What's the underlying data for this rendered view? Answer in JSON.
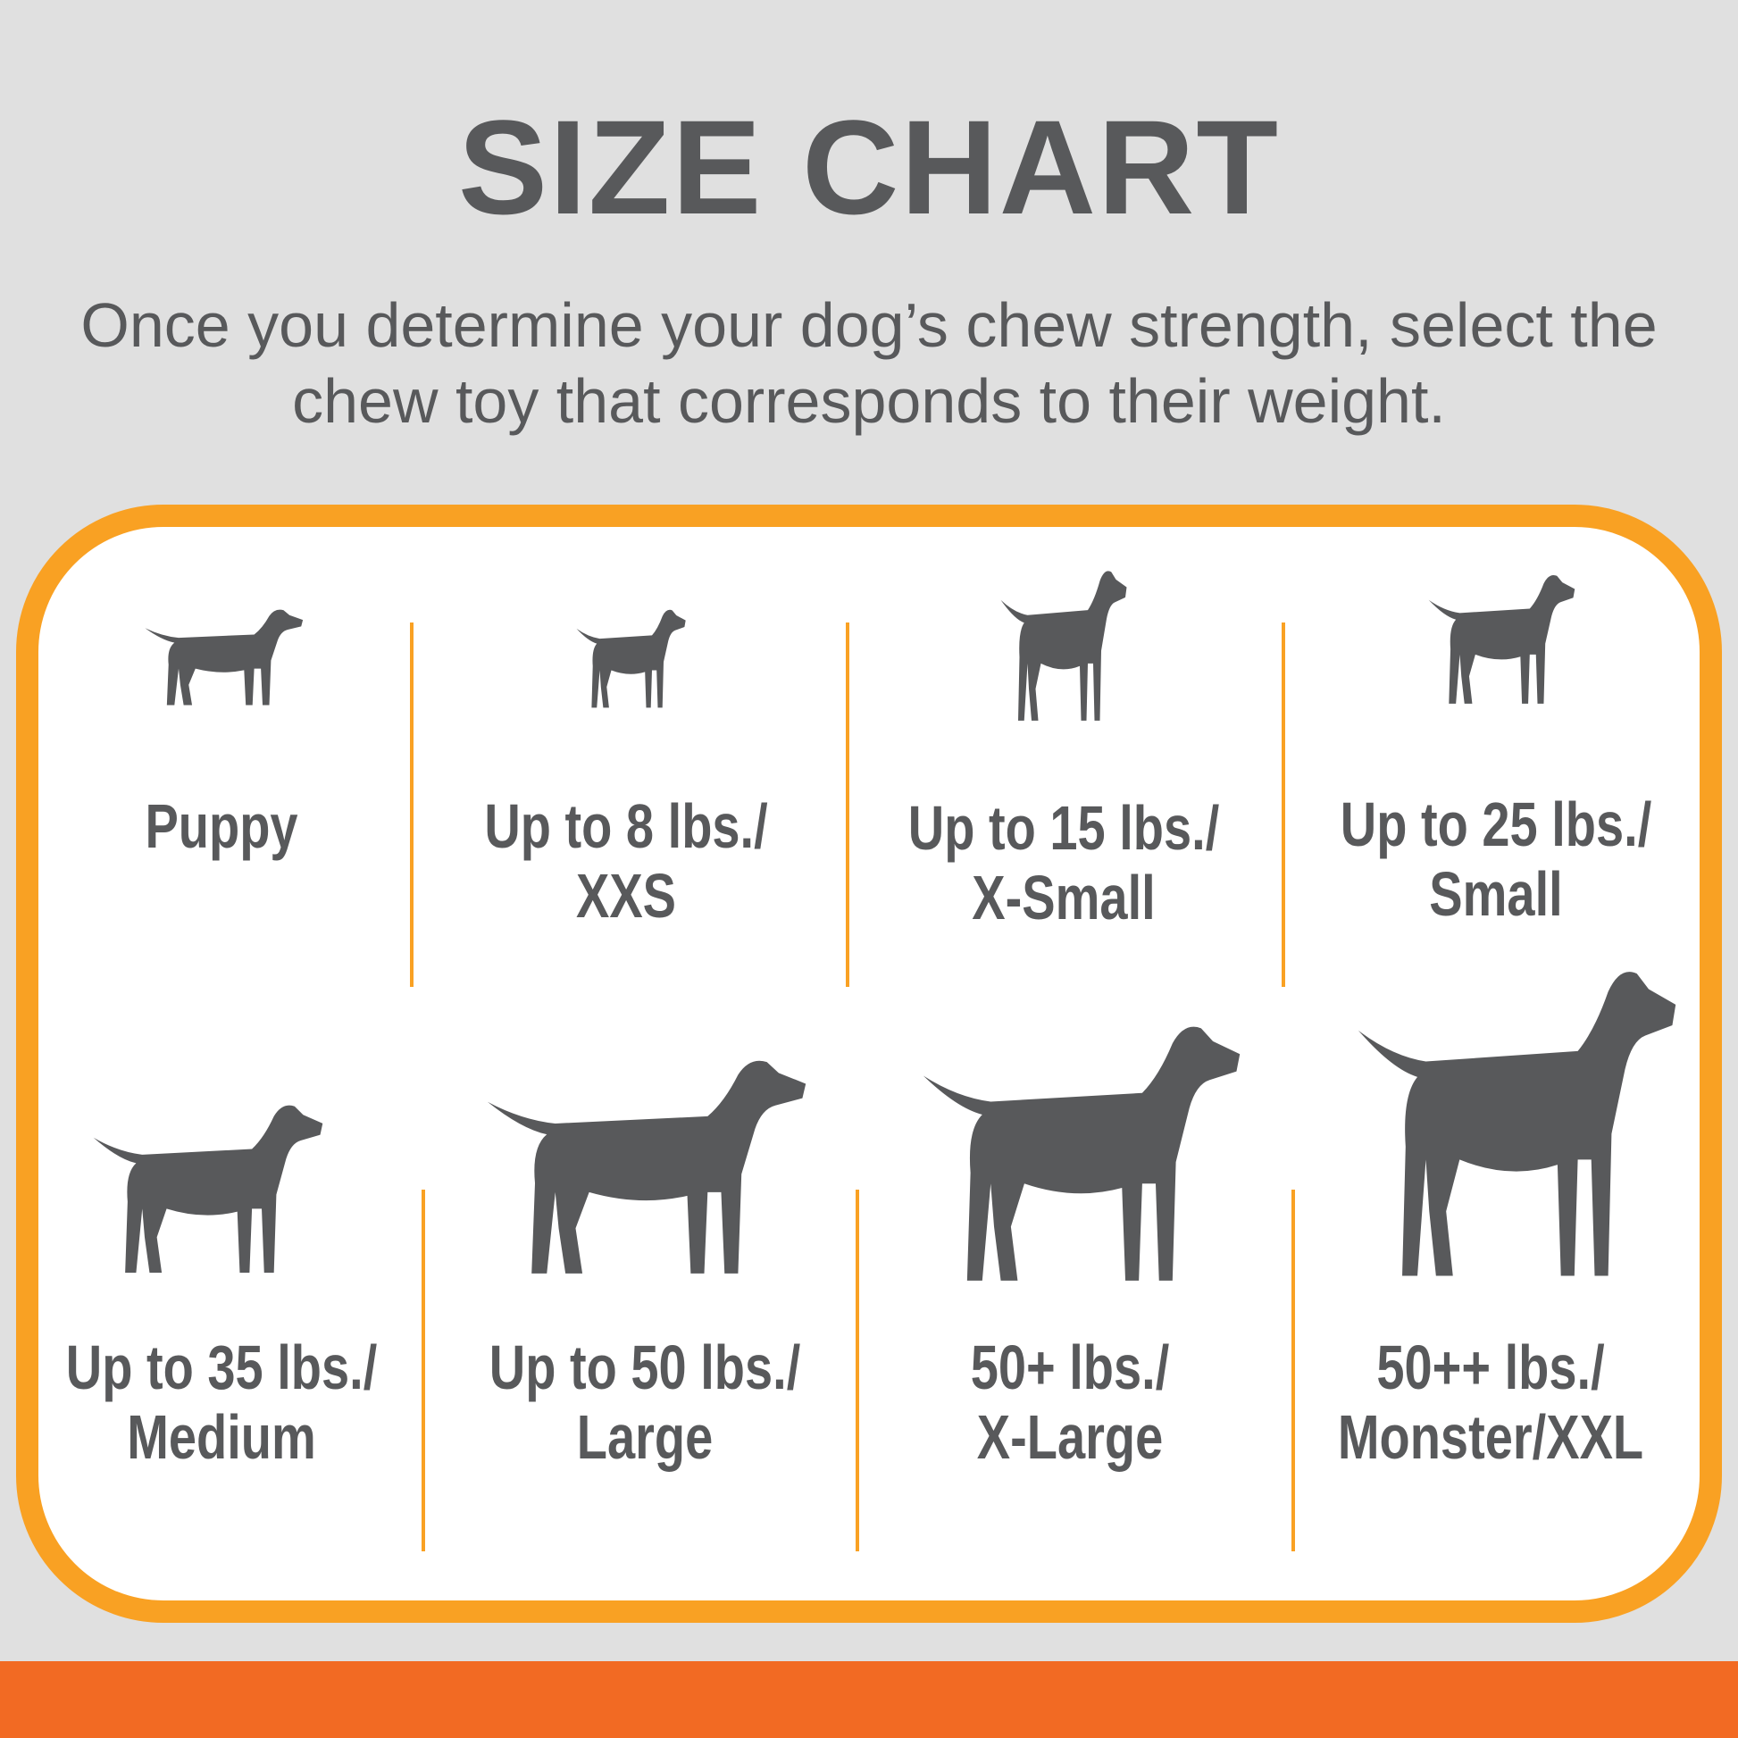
{
  "title": "SIZE CHART",
  "subtitle": "Once you determine your dog’s chew strength, select the chew toy that corresponds to their weight.",
  "colors": {
    "background": "#e0e0e0",
    "border": "#f9a123",
    "bottom_bar": "#f26a23",
    "text": "#58595b"
  },
  "sizes": [
    {
      "line1": "Puppy",
      "line2": "",
      "icon": "puppy-icon"
    },
    {
      "line1": "Up to 8 lbs./",
      "line2": "XXS",
      "icon": "chihuahua-icon"
    },
    {
      "line1": "Up to 15 lbs./",
      "line2": "X-Small",
      "icon": "terrier-icon"
    },
    {
      "line1": "Up to 25 lbs./",
      "line2": "Small",
      "icon": "scottie-icon"
    },
    {
      "line1": "Up to 35 lbs./",
      "line2": "Medium",
      "icon": "beagle-icon"
    },
    {
      "line1": "Up to 50 lbs./",
      "line2": "Large",
      "icon": "labrador-icon"
    },
    {
      "line1": "50+ lbs./",
      "line2": "X-Large",
      "icon": "shepherd-icon"
    },
    {
      "line1": "50++ lbs./",
      "line2": "Monster/XXL",
      "icon": "great-dane-icon"
    }
  ]
}
